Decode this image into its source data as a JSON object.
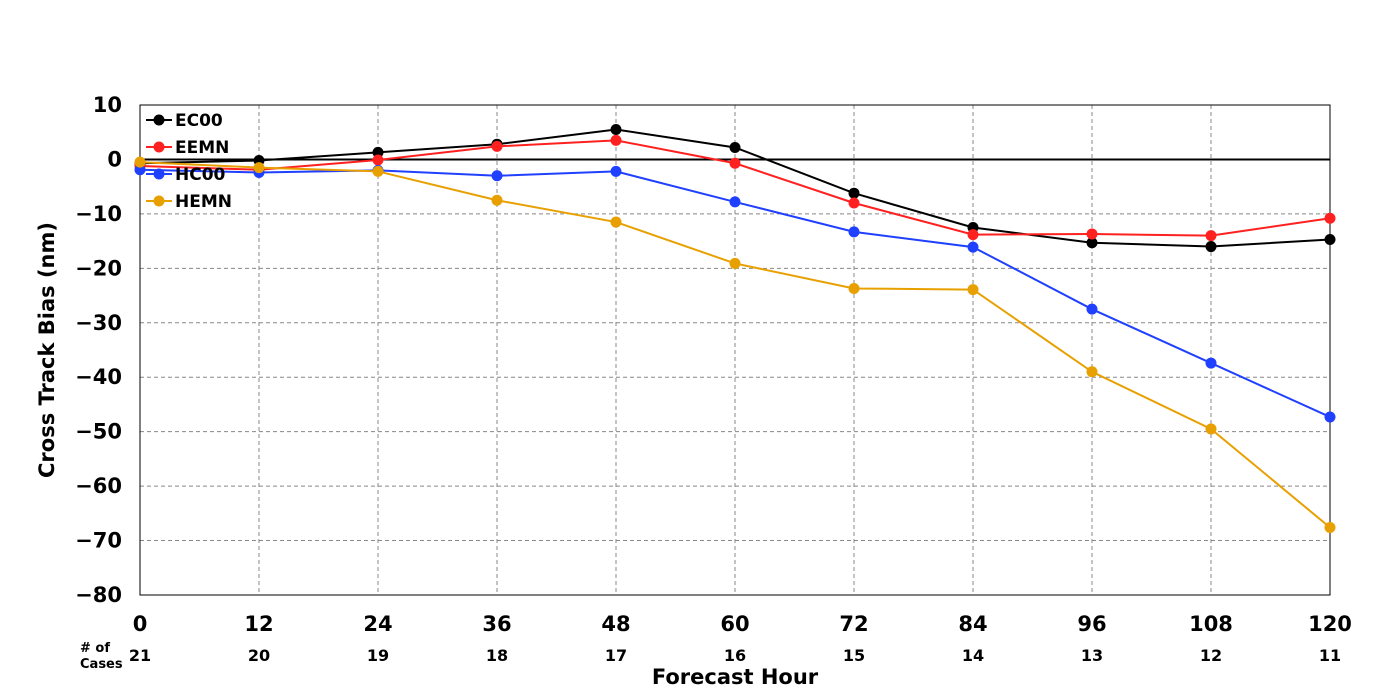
{
  "chart_data": {
    "type": "line",
    "xlabel": "Forecast Hour",
    "ylabel": "Cross Track Bias (nm)",
    "x": [
      0,
      12,
      24,
      36,
      48,
      60,
      72,
      84,
      96,
      108,
      120
    ],
    "xticks": [
      "0",
      "12",
      "24",
      "36",
      "48",
      "60",
      "72",
      "84",
      "96",
      "108",
      "120"
    ],
    "ylim": [
      -80,
      10
    ],
    "yticks": [
      "10",
      "0",
      "−10",
      "−20",
      "−30",
      "−40",
      "−50",
      "−60",
      "−70",
      "−80"
    ],
    "ytick_values": [
      10,
      0,
      -10,
      -20,
      -30,
      -40,
      -50,
      -60,
      -70,
      -80
    ],
    "grid": true,
    "legend": "top-left",
    "cases_label_line1": "# of",
    "cases_label_line2": "Cases",
    "cases": [
      "21",
      "20",
      "19",
      "18",
      "17",
      "16",
      "15",
      "14",
      "13",
      "12",
      "11"
    ],
    "series": [
      {
        "name": "EC00",
        "color": "#000000",
        "values": [
          -0.7,
          -0.2,
          1.3,
          2.8,
          5.5,
          2.2,
          -6.2,
          -12.5,
          -15.3,
          -16.0,
          -14.7
        ]
      },
      {
        "name": "EEMN",
        "color": "#ff2020",
        "values": [
          -1.2,
          -1.9,
          -0.1,
          2.4,
          3.5,
          -0.7,
          -8.0,
          -13.8,
          -13.7,
          -14.0,
          -10.8
        ]
      },
      {
        "name": "HC00",
        "color": "#2040ff",
        "values": [
          -1.9,
          -2.4,
          -2.0,
          -3.0,
          -2.2,
          -7.8,
          -13.3,
          -16.1,
          -27.5,
          -37.4,
          -47.3
        ]
      },
      {
        "name": "HEMN",
        "color": "#e8a000",
        "values": [
          -0.5,
          -1.5,
          -2.2,
          -7.5,
          -11.5,
          -19.1,
          -23.7,
          -23.9,
          -39.0,
          -49.5,
          -67.6
        ]
      }
    ]
  }
}
